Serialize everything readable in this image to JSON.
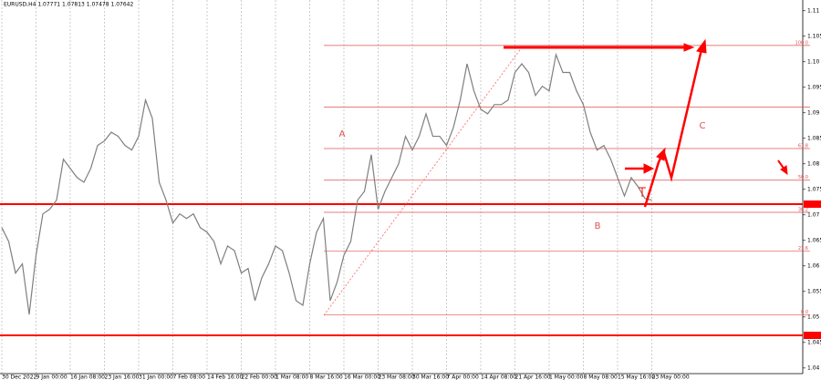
{
  "chart_data": {
    "type": "line",
    "title": "EURUSD,H4  1.07771 1.07813 1.07478 1.07642",
    "color": "#7f7f7f",
    "categories": [
      "30 Dec 2022",
      null,
      null,
      null,
      null,
      "9 Jan 00:00",
      null,
      null,
      null,
      null,
      "16 Jan 08:00",
      null,
      null,
      null,
      null,
      "23 Jan 16:00",
      null,
      null,
      null,
      null,
      "31 Jan 00:00",
      null,
      null,
      null,
      null,
      "7 Feb 08:00",
      null,
      null,
      null,
      null,
      "14 Feb 16:00",
      null,
      null,
      null,
      null,
      "22 Feb 00:00",
      null,
      null,
      null,
      null,
      "1 Mar 08:00",
      null,
      null,
      null,
      null,
      "8 Mar 16:00",
      null,
      null,
      null,
      null,
      "16 Mar 00:00",
      null,
      null,
      null,
      null,
      "23 Mar 08:00",
      null,
      null,
      null,
      null,
      "30 Mar 16:00",
      null,
      null,
      null,
      null,
      "7 Apr 00:00",
      null,
      null,
      null,
      null,
      "14 Apr 08:00",
      null,
      null,
      null,
      null,
      "21 Apr 16:00",
      null,
      null,
      null,
      null,
      "1 May 00:00",
      null,
      null,
      null,
      null,
      "8 May 08:00",
      null,
      null,
      null,
      null,
      "15 May 16:00",
      null,
      null,
      null,
      null,
      "23 May 00:00"
    ],
    "values": [
      1.0675,
      1.0648,
      1.0586,
      1.0604,
      1.0505,
      1.0621,
      1.0702,
      1.0711,
      1.0729,
      1.0809,
      1.0791,
      1.0773,
      1.0764,
      1.0791,
      1.0836,
      1.0845,
      1.0862,
      1.0854,
      1.0836,
      1.0827,
      1.0854,
      1.0925,
      1.0889,
      1.0764,
      1.0729,
      1.0684,
      1.0702,
      1.0693,
      1.0702,
      1.0675,
      1.0666,
      1.0648,
      1.0604,
      1.0639,
      1.063,
      1.0586,
      1.0595,
      1.0532,
      1.0577,
      1.0604,
      1.0639,
      1.063,
      1.0586,
      1.0532,
      1.0523,
      1.0604,
      1.0666,
      1.0693,
      1.0532,
      1.0568,
      1.0621,
      1.0648,
      1.0729,
      1.0746,
      1.0818,
      1.0711,
      1.0746,
      1.0773,
      1.08,
      1.0854,
      1.0827,
      1.0854,
      1.0898,
      1.0854,
      1.0854,
      1.0836,
      1.0871,
      1.0925,
      1.0996,
      1.0943,
      1.0907,
      1.0898,
      1.0916,
      1.0916,
      1.0925,
      1.0979,
      1.0996,
      1.0979,
      1.0934,
      1.0952,
      1.0943,
      1.1014,
      1.0979,
      1.0979,
      1.0943,
      1.0916,
      1.0862,
      1.0827,
      1.0836,
      1.0809,
      1.0773,
      1.0737,
      1.0773,
      1.0755,
      1.0732,
      1.0729
    ],
    "ylim": [
      1.0389,
      1.1121
    ],
    "yticks": [
      {
        "value": 1.11,
        "label": "1.11"
      },
      {
        "value": 1.105,
        "label": "1.105"
      },
      {
        "value": 1.1,
        "label": "1.10"
      },
      {
        "value": 1.095,
        "label": "1.095"
      },
      {
        "value": 1.09,
        "label": "1.09"
      },
      {
        "value": 1.085,
        "label": "1.085"
      },
      {
        "value": 1.08,
        "label": "1.08"
      },
      {
        "value": 1.075,
        "label": "1.075"
      },
      {
        "value": 1.07,
        "label": "1.07"
      },
      {
        "value": 1.065,
        "label": "1.065"
      },
      {
        "value": 1.06,
        "label": "1.06"
      },
      {
        "value": 1.055,
        "label": "1.055"
      },
      {
        "value": 1.05,
        "label": "1.05"
      },
      {
        "value": 1.045,
        "label": "1.045"
      },
      {
        "value": 1.04,
        "label": "1.04"
      }
    ],
    "grid": true,
    "fib_color": "#e05050",
    "fib_levels": [
      {
        "value": 1.1032,
        "label": "100.0"
      },
      {
        "value": 1.0911
      },
      {
        "value": 1.083,
        "label": "61.8"
      },
      {
        "value": 1.0768,
        "label": "50.0"
      },
      {
        "value": 1.0705,
        "label": "38.2"
      },
      {
        "value": 1.0629,
        "label": "23.6"
      },
      {
        "value": 1.0504,
        "label": "0.0"
      }
    ],
    "hline_color": "#ff0000",
    "hlines": [
      1.0721,
      1.0464
    ],
    "annotations": [
      "A",
      "B",
      "C"
    ]
  }
}
